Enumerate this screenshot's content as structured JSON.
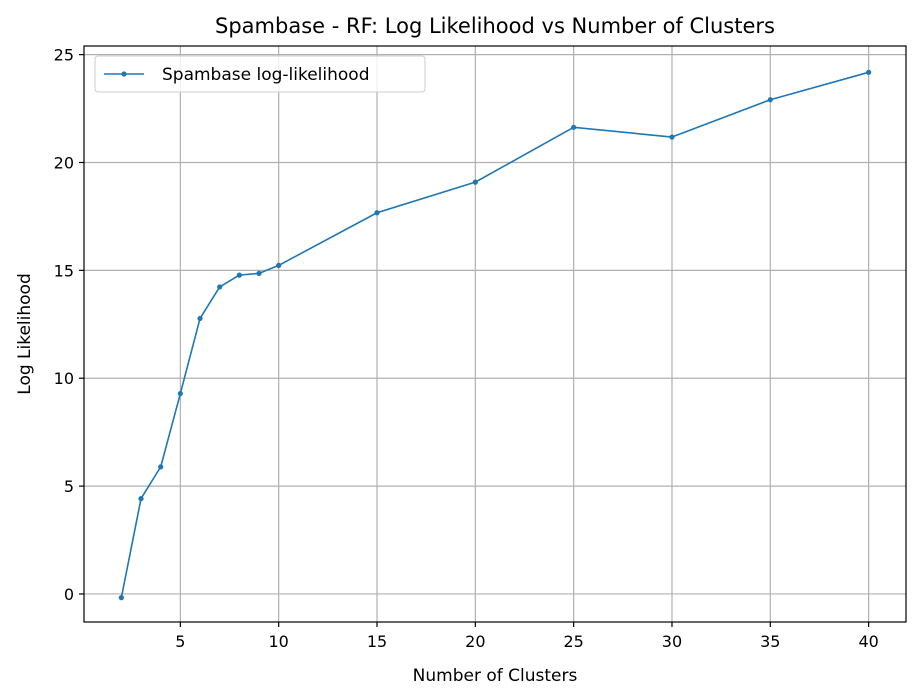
{
  "chart_data": {
    "type": "line",
    "title": "Spambase - RF: Log Likelihood vs Number of Clusters",
    "xlabel": "Number of Clusters",
    "ylabel": "Log Likelihood",
    "xlim": [
      0.1,
      41.9
    ],
    "ylim": [
      -1.3,
      25.4
    ],
    "xticks": [
      5,
      10,
      15,
      20,
      25,
      30,
      35,
      40
    ],
    "yticks": [
      0,
      5,
      10,
      15,
      20,
      25
    ],
    "grid": true,
    "legend_position": "top-left",
    "series": [
      {
        "name": "Spambase log-likelihood",
        "color": "#1f77b4",
        "marker": "dot",
        "x": [
          2,
          3,
          4,
          5,
          6,
          7,
          8,
          9,
          10,
          15,
          20,
          25,
          30,
          35,
          40
        ],
        "y": [
          -0.17,
          4.42,
          5.89,
          9.29,
          12.77,
          14.23,
          14.78,
          14.86,
          15.23,
          17.67,
          19.09,
          21.63,
          21.18,
          22.91,
          24.18
        ]
      }
    ]
  }
}
